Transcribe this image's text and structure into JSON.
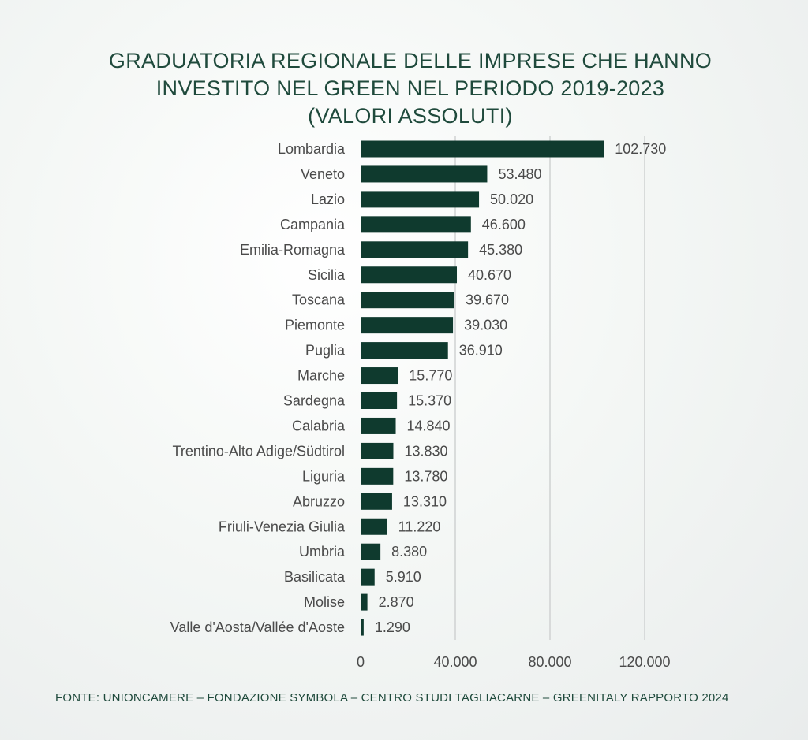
{
  "chart_data": {
    "type": "bar",
    "orientation": "horizontal",
    "title_lines": [
      "GRADUATORIA REGIONALE DELLE IMPRESE CHE HANNO",
      "INVESTITO NEL GREEN NEL PERIODO 2019-2023",
      "(VALORI ASSOLUTI)"
    ],
    "categories": [
      "Lombardia",
      "Veneto",
      "Lazio",
      "Campania",
      "Emilia-Romagna",
      "Sicilia",
      "Toscana",
      "Piemonte",
      "Puglia",
      "Marche",
      "Sardegna",
      "Calabria",
      "Trentino-Alto Adige/Südtirol",
      "Liguria",
      "Abruzzo",
      "Friuli-Venezia Giulia",
      "Umbria",
      "Basilicata",
      "Molise",
      "Valle d'Aosta/Vallée d'Aoste"
    ],
    "values": [
      102730,
      53480,
      50020,
      46600,
      45380,
      40670,
      39670,
      39030,
      36910,
      15770,
      15370,
      14840,
      13830,
      13780,
      13310,
      11220,
      8380,
      5910,
      2870,
      1290
    ],
    "value_labels": [
      "102.730",
      "53.480",
      "50.020",
      "46.600",
      "45.380",
      "40.670",
      "39.670",
      "39.030",
      "36.910",
      "15.770",
      "15.370",
      "14.840",
      "13.830",
      "13.780",
      "13.310",
      "11.220",
      "8.380",
      "5.910",
      "2.870",
      "1.290"
    ],
    "xlim": [
      0,
      120000
    ],
    "x_ticks": [
      0,
      40000,
      80000,
      120000
    ],
    "x_tick_labels": [
      "0",
      "40.000",
      "80.000",
      "120.000"
    ],
    "grid": true,
    "legend": "none",
    "colors": {
      "bar": "#0f3a2e",
      "title": "#1f4a3c",
      "label": "#4a4a4a",
      "grid": "#cfd2d2"
    }
  },
  "source": "FONTE: UNIONCAMERE – FONDAZIONE SYMBOLA –  CENTRO STUDI TAGLIACARNE – GREENITALY RAPPORTO 2024"
}
